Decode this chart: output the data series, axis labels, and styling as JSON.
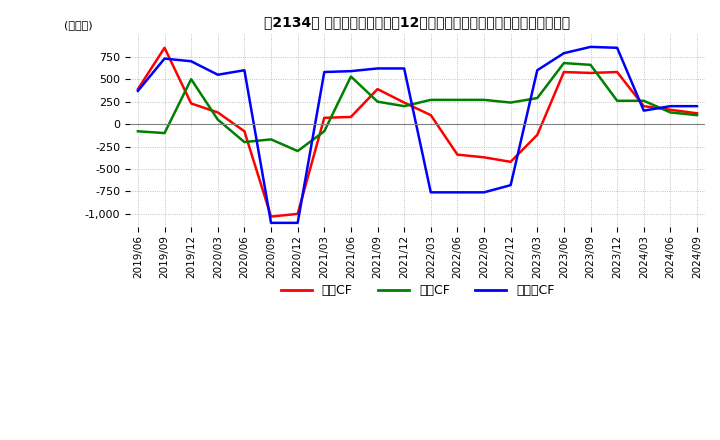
{
  "title": "　2134、 キャッシュフローの12か月移動合計の対前年同期増減額の推移",
  "ylabel": "(百万円)",
  "ylim": [
    -1150,
    1000
  ],
  "yticks": [
    -1000,
    -750,
    -500,
    -250,
    0,
    250,
    500,
    750
  ],
  "dates": [
    "2019/06",
    "2019/09",
    "2019/12",
    "2020/03",
    "2020/06",
    "2020/09",
    "2020/12",
    "2021/03",
    "2021/06",
    "2021/09",
    "2021/12",
    "2022/03",
    "2022/06",
    "2022/09",
    "2022/12",
    "2023/03",
    "2023/06",
    "2023/09",
    "2023/12",
    "2024/03",
    "2024/06",
    "2024/09"
  ],
  "eigyo_cf": [
    390,
    850,
    230,
    130,
    -80,
    -1030,
    -1000,
    70,
    80,
    390,
    240,
    100,
    -340,
    -370,
    -420,
    -120,
    580,
    570,
    580,
    200,
    160,
    120
  ],
  "toshi_cf": [
    -80,
    -100,
    500,
    50,
    -200,
    -170,
    -300,
    -80,
    530,
    250,
    200,
    270,
    270,
    270,
    240,
    290,
    680,
    660,
    260,
    260,
    130,
    100
  ],
  "free_cf": [
    370,
    730,
    700,
    550,
    600,
    -1100,
    -1100,
    580,
    590,
    620,
    620,
    -760,
    -760,
    -760,
    -680,
    600,
    790,
    860,
    850,
    150,
    200,
    200
  ],
  "eigyo_color": "#ff0000",
  "toshi_color": "#008000",
  "free_color": "#0000ff",
  "bg_color": "#ffffff",
  "grid_color": "#b0b0b0"
}
